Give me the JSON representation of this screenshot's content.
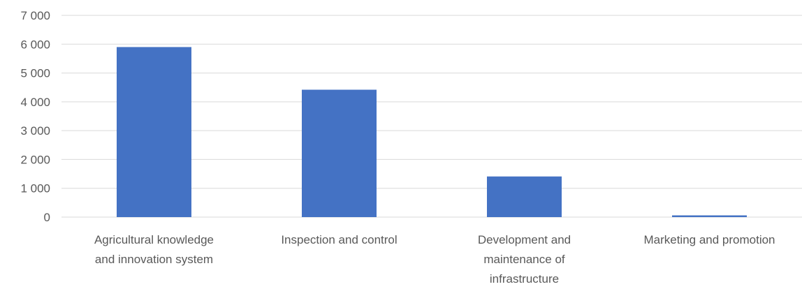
{
  "chart_data": {
    "type": "bar",
    "categories": [
      [
        "Agricultural knowledge",
        "and innovation system"
      ],
      [
        "Inspection and control"
      ],
      [
        "Development and",
        "maintenance of",
        "infrastructure"
      ],
      [
        "Marketing and promotion"
      ]
    ],
    "series": [
      {
        "values": [
          5900,
          4420,
          1410,
          60
        ],
        "color": "#4472C4"
      }
    ],
    "y_ticks": [
      "0",
      "1 000",
      "2 000",
      "3 000",
      "4 000",
      "5 000",
      "6 000",
      "7 000"
    ],
    "ylim": [
      0,
      7000
    ],
    "y_step": 1000,
    "grid": true,
    "legend": "none",
    "gridline_color": "#D9D9D9"
  }
}
